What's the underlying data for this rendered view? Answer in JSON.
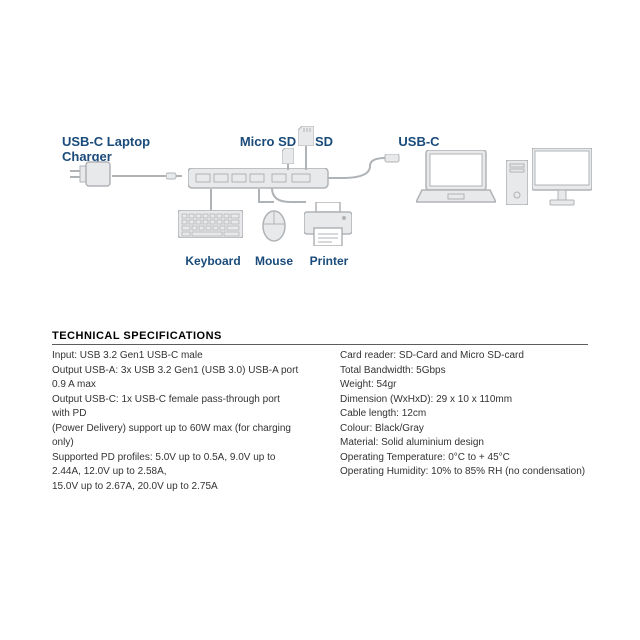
{
  "labels": {
    "charger": "USB-C Laptop Charger",
    "microsd": "Micro SD",
    "sd": "SD",
    "usbc": "USB-C",
    "keyboard": "Keyboard",
    "mouse": "Mouse",
    "printer": "Printer"
  },
  "specs": {
    "title": "TECHNICAL SPECIFICATIONS",
    "left": [
      "Input: USB 3.2 Gen1 USB-C male",
      "Output USB-A: 3x USB 3.2 Gen1 (USB 3.0) USB-A port 0.9 A max",
      "Output USB-C: 1x USB-C female pass-through port with PD",
      "(Power Delivery) support up to 60W max (for charging only)",
      "Supported PD profiles: 5.0V up to 0.5A, 9.0V up to 2.44A, 12.0V up to 2.58A,",
      "15.0V up to 2.67A, 20.0V up to 2.75A"
    ],
    "right": [
      "Card reader: SD-Card and Micro SD-card",
      "Total Bandwidth: 5Gbps",
      "Weight: 54gr",
      "Dimension (WxHxD): 29 x 10 x 110mm",
      "Cable length: 12cm",
      "Colour: Black/Gray",
      "Material: Solid aluminium design",
      "Operating Temperature: 0°C to + 45°C",
      "Operating Humidity: 10% to 85% RH (no condensation)"
    ]
  },
  "colors": {
    "label": "#1a4b7a",
    "outline": "#b0b3b6",
    "fill": "#e8e9ea"
  }
}
